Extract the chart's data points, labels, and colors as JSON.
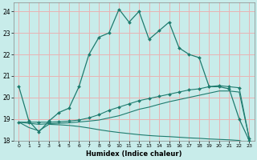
{
  "xlabel": "Humidex (Indice chaleur)",
  "xlim": [
    -0.5,
    23.5
  ],
  "ylim": [
    18.0,
    24.4
  ],
  "xticks": [
    0,
    1,
    2,
    3,
    4,
    5,
    6,
    7,
    8,
    9,
    10,
    11,
    12,
    13,
    14,
    15,
    16,
    17,
    18,
    19,
    20,
    21,
    22,
    23
  ],
  "yticks": [
    18,
    19,
    20,
    21,
    22,
    23,
    24
  ],
  "bg_color": "#c8ecea",
  "grid_color": "#e8b4b4",
  "line_color": "#1e7b6e",
  "line1_x": [
    0,
    1,
    2,
    3,
    4,
    5,
    6,
    7,
    8,
    9,
    10,
    11,
    12,
    13,
    14,
    15,
    16,
    17,
    18,
    19,
    20,
    21,
    22,
    23
  ],
  "line1_y": [
    20.5,
    18.9,
    18.4,
    18.9,
    19.3,
    19.5,
    20.5,
    22.0,
    22.8,
    23.0,
    24.1,
    23.5,
    24.0,
    22.7,
    23.1,
    23.5,
    22.3,
    22.0,
    21.85,
    20.5,
    20.5,
    20.4,
    19.0,
    18.0
  ],
  "line2_x": [
    0,
    1,
    2,
    3,
    4,
    5,
    6,
    7,
    8,
    9,
    10,
    11,
    12,
    13,
    14,
    15,
    16,
    17,
    18,
    19,
    20,
    21,
    22,
    23
  ],
  "line2_y": [
    18.85,
    18.85,
    18.85,
    18.85,
    18.87,
    18.9,
    18.95,
    19.05,
    19.2,
    19.4,
    19.55,
    19.7,
    19.85,
    19.95,
    20.05,
    20.15,
    20.25,
    20.35,
    20.4,
    20.5,
    20.55,
    20.5,
    20.45,
    18.1
  ],
  "line3_x": [
    0,
    1,
    2,
    3,
    4,
    5,
    6,
    7,
    8,
    9,
    10,
    11,
    12,
    13,
    14,
    15,
    16,
    17,
    18,
    19,
    20,
    21,
    22,
    23
  ],
  "line3_y": [
    18.85,
    18.8,
    18.75,
    18.78,
    18.8,
    18.82,
    18.86,
    18.9,
    18.95,
    19.05,
    19.15,
    19.3,
    19.45,
    19.55,
    19.68,
    19.8,
    19.9,
    20.0,
    20.1,
    20.2,
    20.3,
    20.3,
    20.25,
    18.1
  ],
  "line4_x": [
    0,
    1,
    2,
    3,
    4,
    5,
    6,
    7,
    8,
    9,
    10,
    11,
    12,
    13,
    14,
    15,
    16,
    17,
    18,
    19,
    20,
    21,
    22,
    23
  ],
  "line4_y": [
    18.85,
    18.6,
    18.45,
    18.75,
    18.73,
    18.7,
    18.65,
    18.58,
    18.5,
    18.43,
    18.37,
    18.32,
    18.27,
    18.23,
    18.2,
    18.18,
    18.15,
    18.12,
    18.1,
    18.07,
    18.05,
    18.03,
    18.0,
    17.85
  ]
}
